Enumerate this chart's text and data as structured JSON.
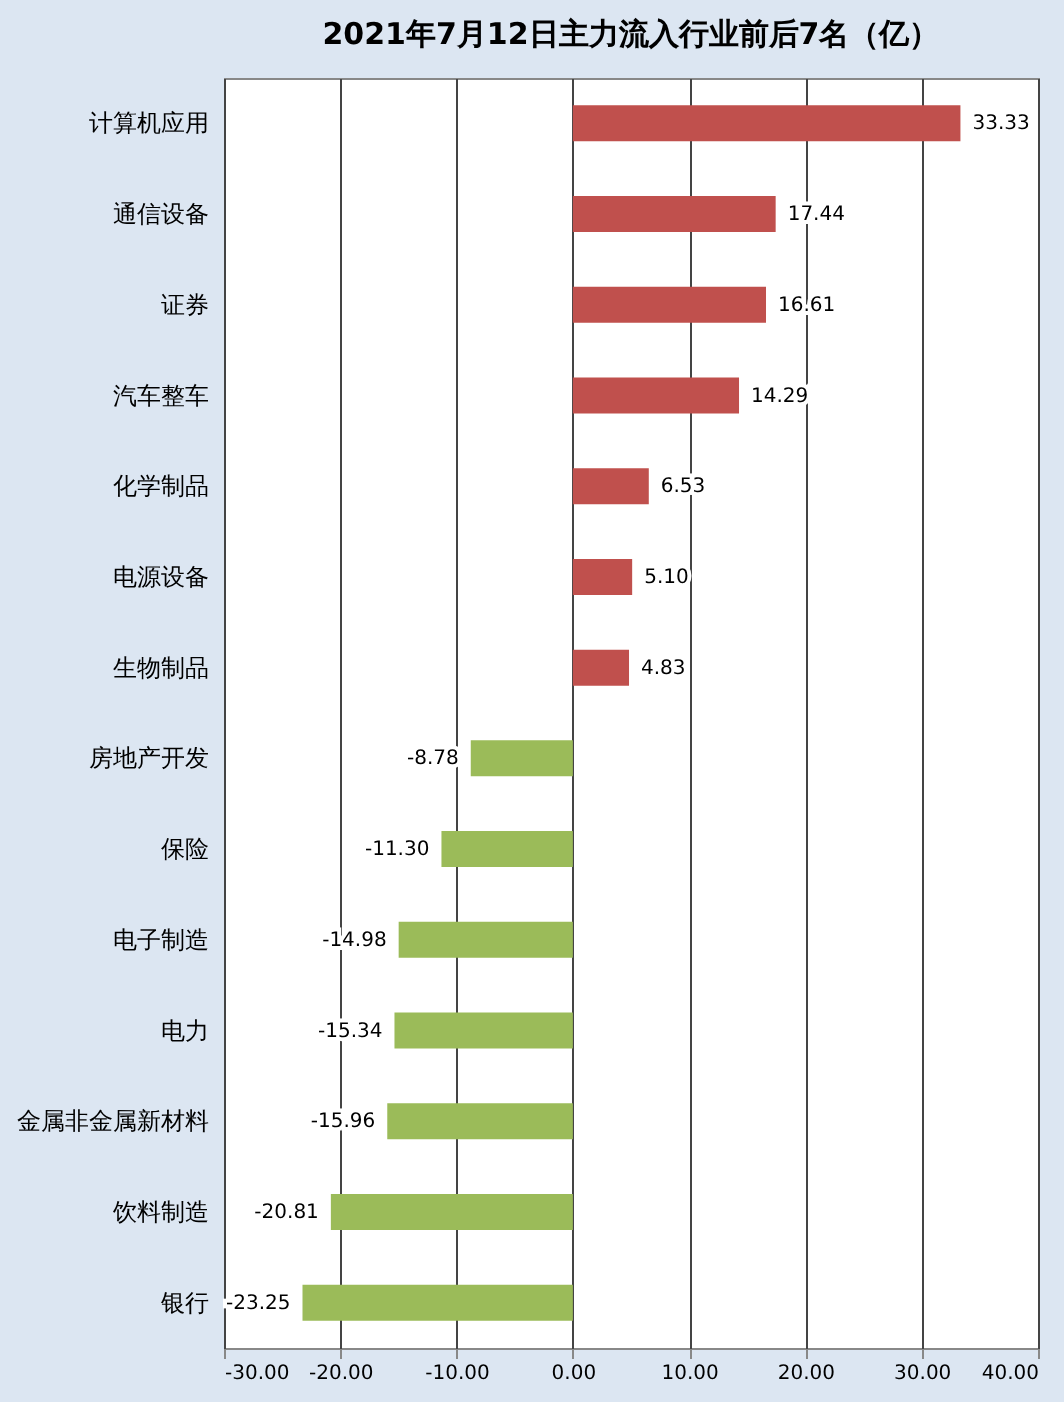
{
  "chart_data": {
    "type": "bar",
    "orientation": "horizontal",
    "title": "2021年7月12日主力流入行业前后7名（亿）",
    "categories": [
      "计算机应用",
      "通信设备",
      "证券",
      "汽车整车",
      "化学制品",
      "电源设备",
      "生物制品",
      "房地产开发",
      "保险",
      "电子制造",
      "电力",
      "金属非金属新材料",
      "饮料制造",
      "银行"
    ],
    "values": [
      33.33,
      17.44,
      16.61,
      14.29,
      6.53,
      5.1,
      4.83,
      -8.78,
      -11.3,
      -14.98,
      -15.34,
      -15.96,
      -20.81,
      -23.25
    ],
    "value_labels": [
      "33.33",
      "17.44",
      "16.61",
      "14.29",
      "6.53",
      "5.10",
      "4.83",
      "-8.78",
      "-11.30",
      "-14.98",
      "-15.34",
      "-15.96",
      "-20.81",
      "-23.25"
    ],
    "colors": [
      "#c0504d",
      "#c0504d",
      "#c0504d",
      "#c0504d",
      "#c0504d",
      "#c0504d",
      "#c0504d",
      "#9bbb59",
      "#9bbb59",
      "#9bbb59",
      "#9bbb59",
      "#9bbb59",
      "#9bbb59",
      "#9bbb59"
    ],
    "xlim": [
      -30,
      40
    ],
    "xticks": [
      {
        "value": -30,
        "label": "-30.00"
      },
      {
        "value": -20,
        "label": "-20.00"
      },
      {
        "value": -10,
        "label": "-10.00"
      },
      {
        "value": 0,
        "label": "0.00"
      },
      {
        "value": 10,
        "label": "10.00"
      },
      {
        "value": 20,
        "label": "20.00"
      },
      {
        "value": 30,
        "label": "30.00"
      },
      {
        "value": 40,
        "label": "40.00"
      }
    ],
    "grid": "x"
  }
}
